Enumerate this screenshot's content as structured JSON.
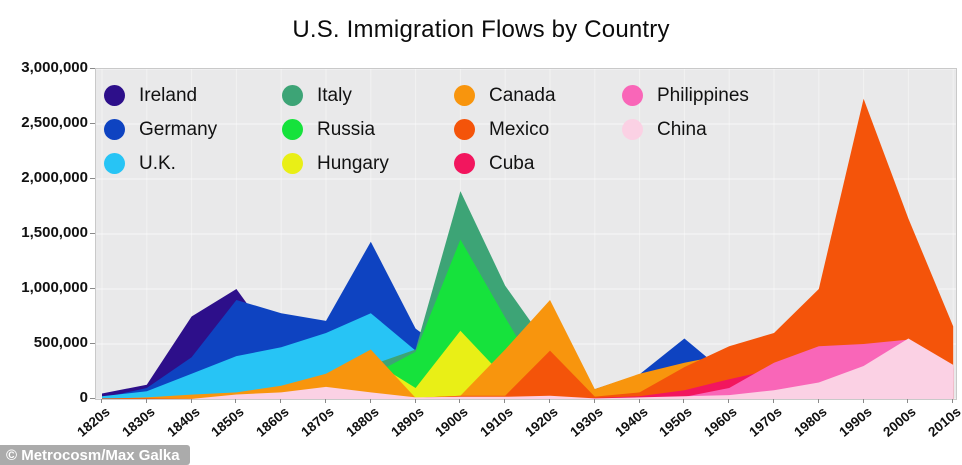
{
  "title": "U.S. Immigration Flows by Country",
  "watermark": "© Metrocosm/Max Galka",
  "colors": {
    "plot_background": "#e9e9ea",
    "plot_border": "#c9c9c9",
    "page_background": "#ffffff"
  },
  "chart_data": {
    "type": "area",
    "variant": "overlapping-areas-from-zero",
    "title": "U.S. Immigration Flows by Country",
    "xlabel": "",
    "ylabel": "",
    "unit": "immigrants per decade",
    "ylim": [
      0,
      3000000
    ],
    "grid": "faint white gridlines on gray plot background",
    "legend_position": "top-left inside plot, 4 columns",
    "yticks": [
      "3,000,000",
      "2,500,000",
      "2,000,000",
      "1,500,000",
      "1,000,000",
      "500,000",
      "0"
    ],
    "categories": [
      "1820s",
      "1830s",
      "1840s",
      "1850s",
      "1860s",
      "1870s",
      "1880s",
      "1890s",
      "1900s",
      "1910s",
      "1920s",
      "1930s",
      "1940s",
      "1950s",
      "1960s",
      "1970s",
      "1980s",
      "1990s",
      "2000s",
      "2010s"
    ],
    "series": [
      {
        "name": "Ireland",
        "color": "#2d0f8a",
        "values": [
          50000,
          130000,
          750000,
          1000000,
          440000,
          440000,
          650000,
          390000,
          340000,
          150000,
          210000,
          15000,
          20000,
          50000,
          35000,
          15000,
          30000,
          55000,
          20000,
          10000
        ]
      },
      {
        "name": "Germany",
        "color": "#0e43c1",
        "values": [
          10000,
          100000,
          380000,
          900000,
          780000,
          710000,
          1430000,
          640000,
          340000,
          145000,
          410000,
          90000,
          225000,
          550000,
          210000,
          75000,
          90000,
          95000,
          120000,
          90000
        ]
      },
      {
        "name": "U.K.",
        "color": "#27c4f5",
        "values": [
          25000,
          70000,
          230000,
          390000,
          470000,
          600000,
          780000,
          440000,
          520000,
          340000,
          340000,
          30000,
          140000,
          200000,
          215000,
          135000,
          160000,
          150000,
          170000,
          120000
        ]
      },
      {
        "name": "Italy",
        "color": "#3da476",
        "values": [
          0,
          2000,
          2000,
          9000,
          12000,
          56000,
          307000,
          450000,
          1890000,
          1030000,
          455000,
          70000,
          60000,
          185000,
          215000,
          130000,
          65000,
          65000,
          30000,
          20000
        ]
      },
      {
        "name": "Russia",
        "color": "#16e23c",
        "values": [
          0,
          0,
          1000,
          1000,
          3000,
          39000,
          213000,
          430000,
          1450000,
          740000,
          60000,
          2000,
          1000,
          1000,
          2000,
          40000,
          60000,
          460000,
          170000,
          80000
        ]
      },
      {
        "name": "Hungary",
        "color": "#e9ef16",
        "values": [
          0,
          0,
          0,
          0,
          1000,
          73000,
          354000,
          100000,
          620000,
          190000,
          30000,
          8000,
          4000,
          36000,
          5000,
          6000,
          7000,
          10000,
          7000,
          5000
        ]
      },
      {
        "name": "Canada",
        "color": "#f8950d",
        "values": [
          3000,
          15000,
          40000,
          60000,
          120000,
          230000,
          450000,
          10000,
          30000,
          450000,
          900000,
          90000,
          230000,
          330000,
          410000,
          170000,
          160000,
          190000,
          240000,
          160000
        ]
      },
      {
        "name": "Mexico",
        "color": "#f4540a",
        "values": [
          5000,
          7000,
          3000,
          3000,
          2000,
          5000,
          2000,
          10000,
          30000,
          30000,
          440000,
          22000,
          60000,
          290000,
          480000,
          600000,
          1000000,
          2730000,
          1640000,
          660000
        ]
      },
      {
        "name": "Cuba",
        "color": "#f2165e",
        "values": [
          0,
          0,
          0,
          0,
          0,
          0,
          0,
          0,
          0,
          5000,
          15000,
          9000,
          25000,
          80000,
          180000,
          270000,
          150000,
          170000,
          270000,
          280000
        ]
      },
      {
        "name": "Philippines",
        "color": "#f966b8",
        "values": [
          0,
          0,
          0,
          0,
          0,
          0,
          0,
          0,
          0,
          0,
          0,
          1000,
          5000,
          19000,
          100000,
          330000,
          480000,
          500000,
          540000,
          300000
        ]
      },
      {
        "name": "China",
        "color": "#fbd1e4",
        "values": [
          0,
          0,
          1000,
          41000,
          60000,
          110000,
          60000,
          15000,
          20000,
          20000,
          30000,
          5000,
          15000,
          25000,
          35000,
          80000,
          150000,
          300000,
          550000,
          310000
        ]
      }
    ]
  }
}
